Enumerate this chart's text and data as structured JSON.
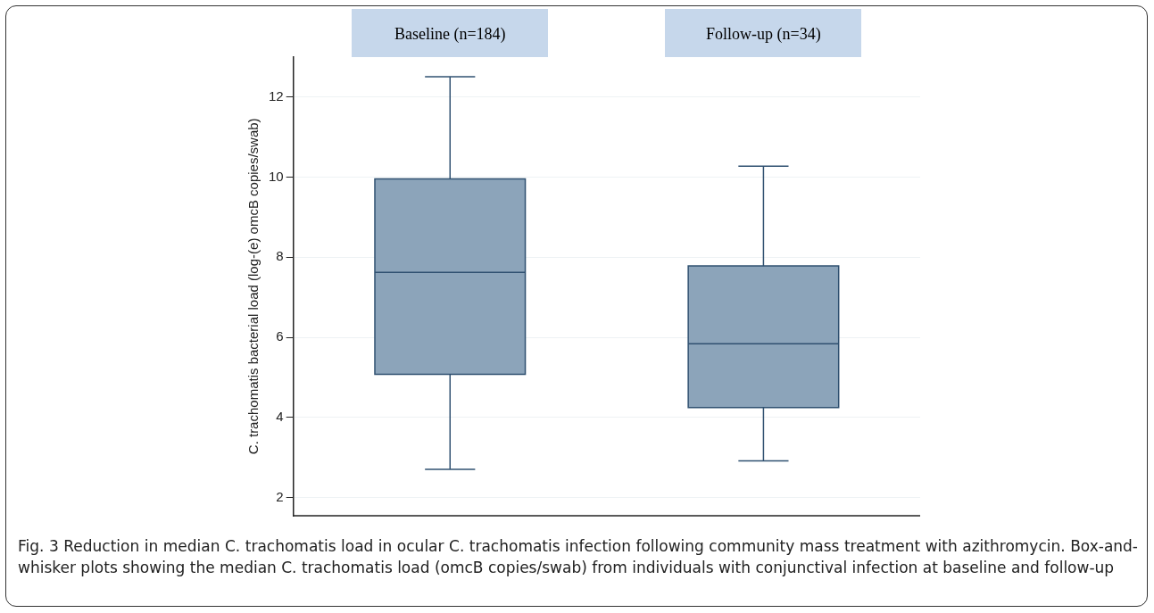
{
  "chart_data": {
    "type": "box",
    "categories": [
      "Baseline (n=184)",
      "Follow-up (n=34)"
    ],
    "boxes": [
      {
        "low": 2.71,
        "q1": 5.08,
        "median": 7.62,
        "q3": 9.95,
        "high": 12.5
      },
      {
        "low": 2.92,
        "q1": 4.25,
        "median": 5.84,
        "q3": 7.78,
        "high": 10.27
      }
    ],
    "color": "#8ca4ba",
    "ylabel": "C. trachomatis bacterial load (log-(e) omcB copies/swab)",
    "ylim": [
      1.55,
      13
    ],
    "yticks": [
      2,
      4,
      6,
      8,
      10,
      12
    ],
    "grid": "y",
    "legend": false,
    "annotations": [
      "Fig. 3 Reduction in median C. trachomatis load in ocular C. trachomatis infection following community mass treatment with azithromycin. Box-and-whisker plots showing the median C. trachomatis load (omcB copies/swab) from individuals with conjunctival infection at baseline and follow-up"
    ]
  }
}
